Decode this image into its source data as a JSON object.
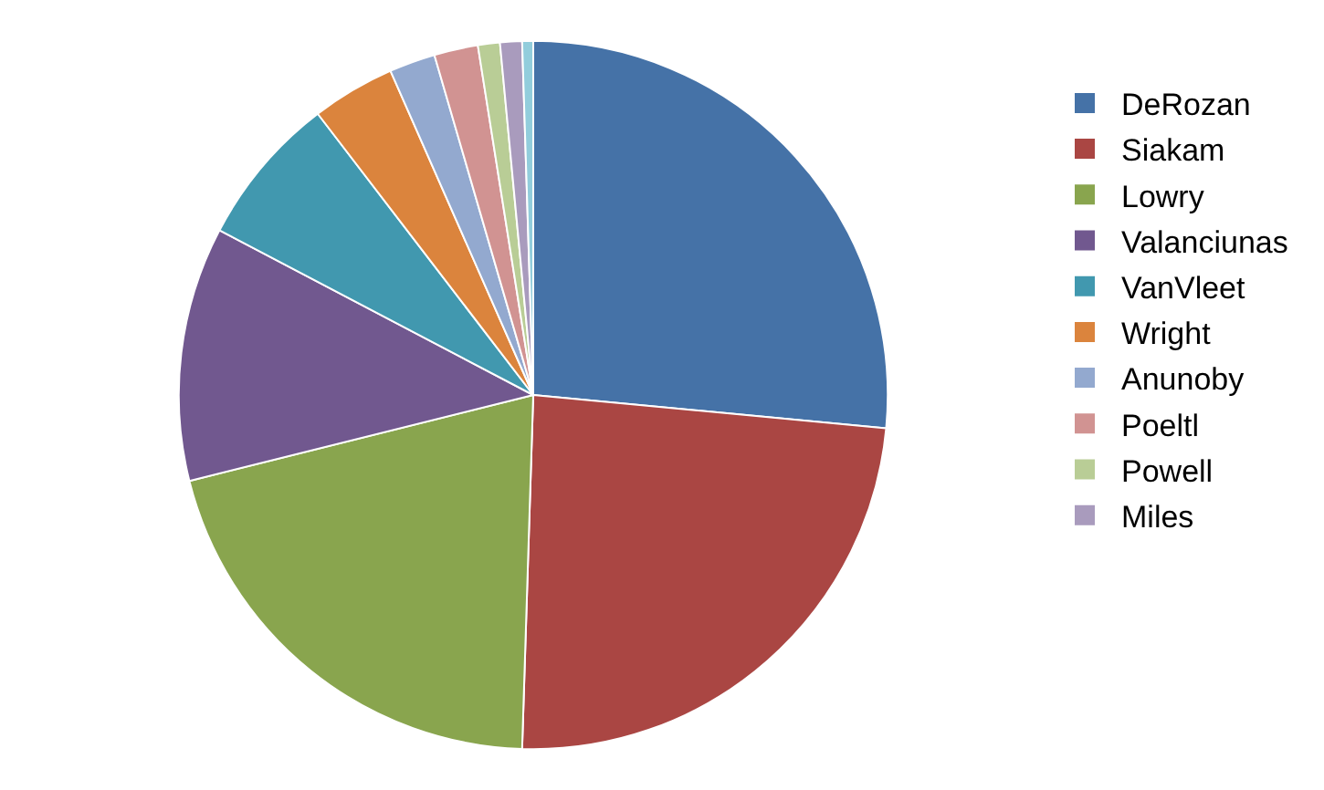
{
  "chart_data": {
    "type": "pie",
    "categories": [
      "DeRozan",
      "Siakam",
      "Lowry",
      "Valanciunas",
      "VanVleet",
      "Wright",
      "Anunoby",
      "Poeltl",
      "Powell",
      "Miles",
      null
    ],
    "values": [
      26.5,
      24.0,
      20.6,
      11.6,
      6.9,
      3.8,
      2.1,
      2.0,
      1.0,
      1.0,
      0.5
    ],
    "colors": [
      "#4572a7",
      "#aa4643",
      "#89a54e",
      "#71588f",
      "#4198af",
      "#db843d",
      "#93a9cf",
      "#d19392",
      "#b9cd96",
      "#a99bbd",
      "#92cddc"
    ],
    "legend": "right"
  }
}
